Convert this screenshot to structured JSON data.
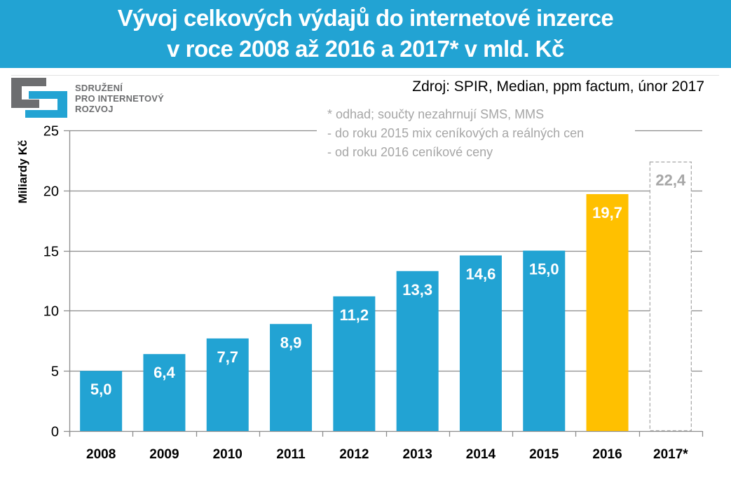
{
  "header": {
    "title_line1": "Vývoj celkových výdajů do internetové inzerce",
    "title_line2": "v roce 2008 až 2016 a 2017* v mld. Kč"
  },
  "logo": {
    "line1": "SDRUŽENÍ",
    "line2": "PRO INTERNETOVÝ",
    "line3": "ROZVOJ",
    "colors": {
      "gray": "#6D6E70",
      "blue": "#22A3D3"
    }
  },
  "source": "Zdroj: SPIR, Median, ppm factum, únor 2017",
  "notes": [
    "* odhad; součty nezahrnují  SMS, MMS",
    "- do roku 2015 mix ceníkových a reálných cen",
    "- od roku 2016 ceníkové ceny"
  ],
  "colors": {
    "bar_default": "#22A3D3",
    "bar_highlight": "#FFC000",
    "bar_estimate_border": "#A6A6A6",
    "estimate_label": "#A6A6A6",
    "grid": "#8C8C8C"
  },
  "chart_data": {
    "type": "bar",
    "title": "Vývoj celkových výdajů do internetové inzerce v roce 2008 až 2016 a 2017* v mld. Kč",
    "xlabel": "",
    "ylabel": "Miliardy Kč",
    "ylim": [
      0,
      25
    ],
    "yticks": [
      0,
      5,
      10,
      15,
      20,
      25
    ],
    "ytick_labels": [
      "0",
      "5",
      "10",
      "15",
      "20",
      "25"
    ],
    "grid": true,
    "legend": "none",
    "categories": [
      "2008",
      "2009",
      "2010",
      "2011",
      "2012",
      "2013",
      "2014",
      "2015",
      "2016",
      "2017*"
    ],
    "values": [
      5.0,
      6.4,
      7.7,
      8.9,
      11.2,
      13.3,
      14.6,
      15.0,
      19.7,
      22.4
    ],
    "value_labels": [
      "5,0",
      "6,4",
      "7,7",
      "8,9",
      "11,2",
      "13,3",
      "14,6",
      "15,0",
      "19,7",
      "22,4"
    ],
    "bar_styles": [
      "default",
      "default",
      "default",
      "default",
      "default",
      "default",
      "default",
      "default",
      "highlight",
      "estimate"
    ]
  }
}
